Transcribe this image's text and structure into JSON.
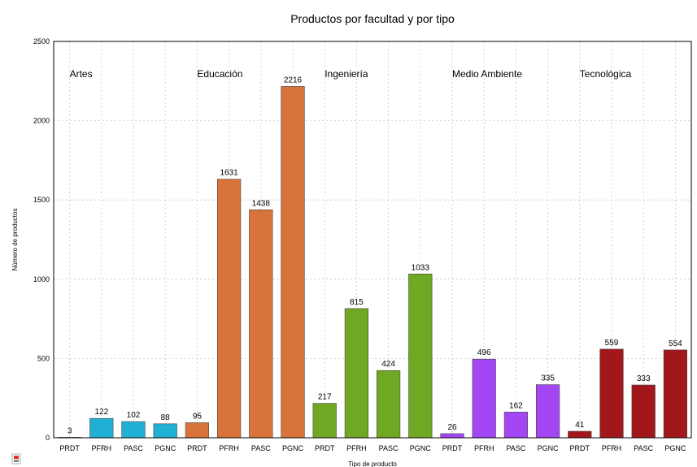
{
  "chart_data": {
    "type": "bar",
    "title": "Productos por facultad y por tipo",
    "xlabel": "Tipo de producto",
    "ylabel": "Número de productos",
    "ylim": [
      0,
      2500
    ],
    "yticks": [
      "0",
      "500",
      "1000",
      "1500",
      "2000",
      "2500"
    ],
    "grid": true,
    "groups": [
      {
        "name": "Artes",
        "color": "#1fb0d4",
        "categories": [
          "PRDT",
          "PFRH",
          "PASC",
          "PGNC"
        ],
        "values": [
          3,
          122,
          102,
          88
        ],
        "labels": [
          "3",
          "122",
          "102",
          "88"
        ]
      },
      {
        "name": "Educación",
        "color": "#d8743a",
        "categories": [
          "PRDT",
          "PFRH",
          "PASC",
          "PGNC"
        ],
        "values": [
          95,
          1631,
          1438,
          2216
        ],
        "labels": [
          "95",
          "1631",
          "1438",
          "2216"
        ]
      },
      {
        "name": "Ingeniería",
        "color": "#6fa823",
        "categories": [
          "PRDT",
          "PFRH",
          "PASC",
          "PGNC"
        ],
        "values": [
          217,
          815,
          424,
          1033
        ],
        "labels": [
          "217",
          "815",
          "424",
          "1033"
        ]
      },
      {
        "name": "Medio Ambiente",
        "color": "#a347f5",
        "categories": [
          "PRDT",
          "PFRH",
          "PASC",
          "PGNC"
        ],
        "values": [
          26,
          496,
          162,
          335
        ],
        "labels": [
          "26",
          "496",
          "162",
          "335"
        ]
      },
      {
        "name": "Tecnológica",
        "color": "#a2171b",
        "categories": [
          "PRDT",
          "PFRH",
          "PASC",
          "PGNC"
        ],
        "values": [
          41,
          559,
          333,
          554
        ],
        "labels": [
          "41",
          "559",
          "333",
          "554"
        ]
      }
    ]
  }
}
